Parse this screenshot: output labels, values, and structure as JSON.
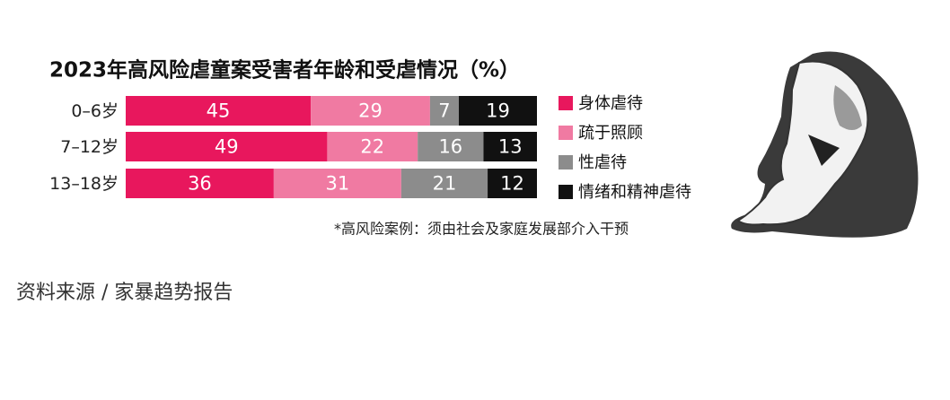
{
  "chart_data": {
    "type": "stacked-bar-horizontal",
    "title": "2023年高风险虐童案受害者年龄和受虐情况（%）",
    "categories": [
      "0–6岁",
      "7–12岁",
      "13–18岁"
    ],
    "series": [
      {
        "name": "身体虐待",
        "color": "#e8175d",
        "values": [
          45,
          49,
          36
        ]
      },
      {
        "name": "疏于照顾",
        "color": "#f07aa2",
        "values": [
          29,
          22,
          31
        ]
      },
      {
        "name": "性虐待",
        "color": "#8c8c8c",
        "values": [
          7,
          16,
          21
        ]
      },
      {
        "name": "情绪和精神虐待",
        "color": "#111111",
        "values": [
          19,
          13,
          12
        ]
      }
    ],
    "note": "*高风险案例：须由社会及家庭发展部介入干预",
    "source": "资料来源 / 家暴趋势报告"
  }
}
